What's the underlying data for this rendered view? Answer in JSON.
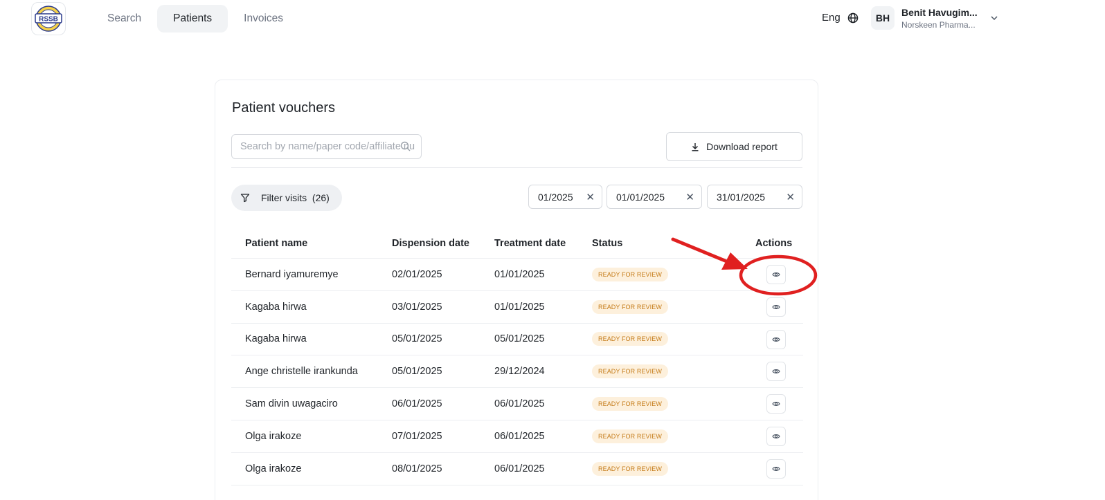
{
  "nav": {
    "logo_text": "RSSB",
    "items": [
      {
        "label": "Search",
        "active": false
      },
      {
        "label": "Patients",
        "active": true
      },
      {
        "label": "Invoices",
        "active": false
      }
    ]
  },
  "header": {
    "language": "Eng",
    "user": {
      "initials": "BH",
      "name": "Benit Havugim...",
      "org": "Norskeen Pharma..."
    }
  },
  "vouchers": {
    "title": "Patient vouchers",
    "search_placeholder": "Search by name/paper code/affiliate nu",
    "download_label": "Download report",
    "filter_label": "Filter visits",
    "filter_count": "(26)",
    "chips": [
      "01/2025",
      "01/01/2025",
      "31/01/2025"
    ],
    "columns": {
      "name": "Patient name",
      "dispension": "Dispension date",
      "treatment": "Treatment date",
      "status": "Status",
      "actions": "Actions"
    },
    "rows": [
      {
        "name": "Bernard iyamuremye",
        "dispension": "02/01/2025",
        "treatment": "01/01/2025",
        "status": "READY FOR REVIEW"
      },
      {
        "name": "Kagaba hirwa",
        "dispension": "03/01/2025",
        "treatment": "01/01/2025",
        "status": "READY FOR REVIEW"
      },
      {
        "name": "Kagaba hirwa",
        "dispension": "05/01/2025",
        "treatment": "05/01/2025",
        "status": "READY FOR REVIEW"
      },
      {
        "name": "Ange christelle irankunda",
        "dispension": "05/01/2025",
        "treatment": "29/12/2024",
        "status": "READY FOR REVIEW"
      },
      {
        "name": "Sam divin uwagaciro",
        "dispension": "06/01/2025",
        "treatment": "06/01/2025",
        "status": "READY FOR REVIEW"
      },
      {
        "name": "Olga irakoze",
        "dispension": "07/01/2025",
        "treatment": "06/01/2025",
        "status": "READY FOR REVIEW"
      },
      {
        "name": "Olga irakoze",
        "dispension": "08/01/2025",
        "treatment": "06/01/2025",
        "status": "READY FOR REVIEW"
      }
    ]
  },
  "colors": {
    "badge_bg": "#fdf0dc",
    "badge_text": "#c47a16",
    "annotation_red": "#e02020",
    "active_nav_bg": "#f1f3f5"
  }
}
